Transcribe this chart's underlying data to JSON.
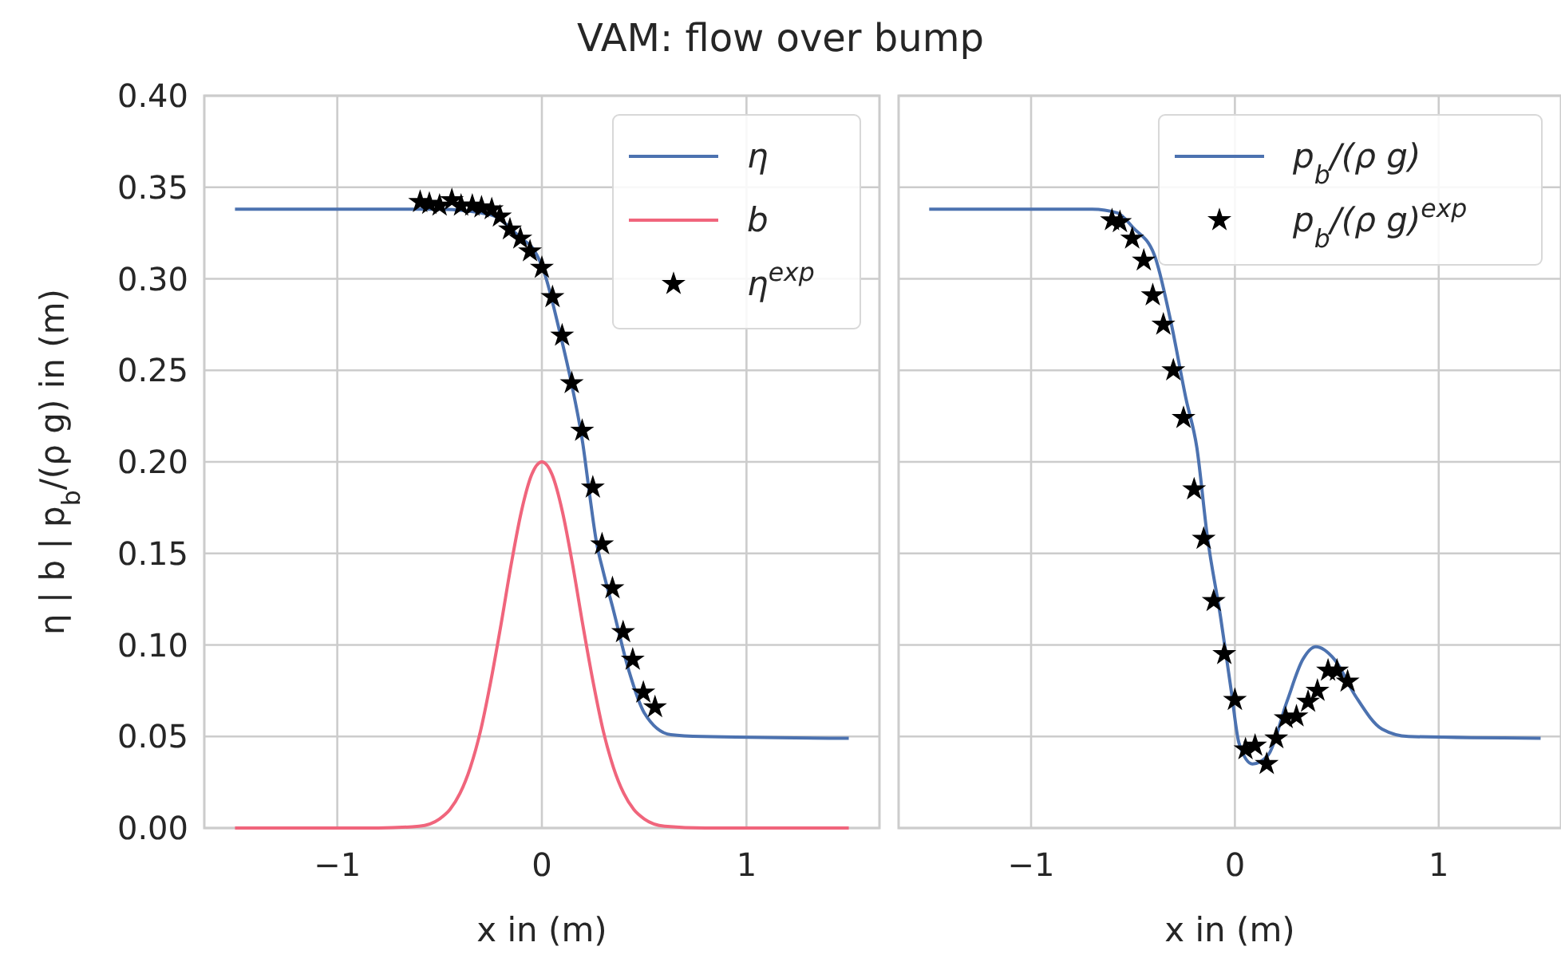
{
  "chart_data": [
    {
      "type": "line",
      "title": "VAM: flow over bump",
      "xlabel": "x in (m)",
      "ylabel": "η | b | p$_{b}$/(ρ g)  in (m)",
      "xlim": [
        -1.65,
        1.65
      ],
      "ylim": [
        0,
        0.4
      ],
      "xticks": [
        {
          "value": -1,
          "label": "−1"
        },
        {
          "value": 0,
          "label": "0"
        },
        {
          "value": 1,
          "label": "1"
        }
      ],
      "yticks": [
        {
          "value": 0,
          "label": "0.00"
        },
        {
          "value": 0.05,
          "label": "0.05"
        },
        {
          "value": 0.1,
          "label": "0.10"
        },
        {
          "value": 0.15,
          "label": "0.15"
        },
        {
          "value": 0.2,
          "label": "0.20"
        },
        {
          "value": 0.25,
          "label": "0.25"
        },
        {
          "value": 0.3,
          "label": "0.30"
        },
        {
          "value": 0.35,
          "label": "0.35"
        },
        {
          "value": 0.4,
          "label": "0.40"
        }
      ],
      "grid": true,
      "legend": "top right",
      "series": [
        {
          "name": "η",
          "color": "#4c72b0",
          "marker": "none",
          "x": [
            -1.5,
            -0.5,
            -0.25,
            -0.1,
            -0.04,
            0.01,
            0.085,
            0.15,
            0.2,
            0.23,
            0.267,
            0.3,
            0.345,
            0.425,
            0.5,
            0.63,
            0.785,
            1.5
          ],
          "values": [
            0.338,
            0.338,
            0.335,
            0.322,
            0.316,
            0.304,
            0.272,
            0.24,
            0.21,
            0.185,
            0.156,
            0.14,
            0.121,
            0.086,
            0.063,
            0.051,
            0.05,
            0.049
          ]
        },
        {
          "name": "b",
          "color": "#f0657c",
          "marker": "none",
          "x": [
            -1.5,
            -0.8,
            -0.6,
            -0.5,
            -0.45,
            -0.4,
            -0.35,
            -0.3,
            -0.25,
            -0.2,
            -0.15,
            -0.1,
            -0.05,
            0,
            0.05,
            0.1,
            0.15,
            0.2,
            0.25,
            0.3,
            0.35,
            0.4,
            0.45,
            0.5,
            0.6,
            0.8,
            1.5
          ],
          "values": [
            0,
            0,
            0.001,
            0.005,
            0.01,
            0.019,
            0.033,
            0.053,
            0.08,
            0.111,
            0.144,
            0.173,
            0.193,
            0.2,
            0.193,
            0.173,
            0.144,
            0.111,
            0.08,
            0.053,
            0.033,
            0.019,
            0.01,
            0.005,
            0.001,
            0,
            0
          ]
        },
        {
          "name": "η$^{exp}$",
          "type": "scatter",
          "color": "#000000",
          "marker": "star",
          "x": [
            -0.595,
            -0.55,
            -0.5,
            -0.44,
            -0.395,
            -0.34,
            -0.295,
            -0.245,
            -0.205,
            -0.156,
            -0.105,
            -0.058,
            0,
            0.052,
            0.099,
            0.146,
            0.197,
            0.249,
            0.294,
            0.345,
            0.397,
            0.444,
            0.496,
            0.553
          ],
          "values": [
            0.342,
            0.341,
            0.34,
            0.343,
            0.34,
            0.34,
            0.339,
            0.338,
            0.334,
            0.327,
            0.322,
            0.315,
            0.306,
            0.29,
            0.269,
            0.243,
            0.217,
            0.186,
            0.155,
            0.131,
            0.107,
            0.092,
            0.074,
            0.066
          ]
        }
      ]
    },
    {
      "type": "line",
      "xlabel": "x in (m)",
      "xlim": [
        -1.65,
        1.6
      ],
      "ylim": [
        0,
        0.4
      ],
      "tick_labels": "x",
      "xticks": [
        {
          "value": -1,
          "label": "−1"
        },
        {
          "value": 0,
          "label": "0"
        },
        {
          "value": 1,
          "label": "1"
        }
      ],
      "yticks": [
        0,
        0.05,
        0.1,
        0.15,
        0.2,
        0.25,
        0.3,
        0.35,
        0.4
      ],
      "grid": true,
      "legend": "top right",
      "series": [
        {
          "name": "p$_{b}$/(ρ g)",
          "color": "#4c72b0",
          "marker": "none",
          "x": [
            -1.5,
            -0.7,
            -0.577,
            -0.5,
            -0.395,
            -0.317,
            -0.239,
            -0.187,
            -0.135,
            -0.07,
            -0.018,
            0.021,
            0.086,
            0.164,
            0.255,
            0.333,
            0.397,
            0.489,
            0.592,
            0.722,
            0.852,
            1.5
          ],
          "values": [
            0.338,
            0.338,
            0.336,
            0.328,
            0.313,
            0.278,
            0.234,
            0.208,
            0.159,
            0.115,
            0.075,
            0.046,
            0.035,
            0.04,
            0.069,
            0.092,
            0.099,
            0.092,
            0.072,
            0.054,
            0.05,
            0.049
          ]
        },
        {
          "name": "p$_{b}$/(ρ g)$^{exp}$",
          "type": "scatter",
          "color": "#000000",
          "marker": "star",
          "x": [
            -0.603,
            -0.564,
            -0.504,
            -0.447,
            -0.403,
            -0.351,
            -0.302,
            -0.252,
            -0.2,
            -0.153,
            -0.104,
            -0.052,
            0,
            0.052,
            0.099,
            0.156,
            0.203,
            0.249,
            0.302,
            0.359,
            0.405,
            0.457,
            0.501,
            0.553
          ],
          "values": [
            0.332,
            0.331,
            0.322,
            0.31,
            0.291,
            0.275,
            0.25,
            0.224,
            0.185,
            0.158,
            0.124,
            0.095,
            0.07,
            0.043,
            0.045,
            0.035,
            0.049,
            0.06,
            0.061,
            0.069,
            0.075,
            0.086,
            0.086,
            0.08
          ]
        }
      ]
    }
  ]
}
